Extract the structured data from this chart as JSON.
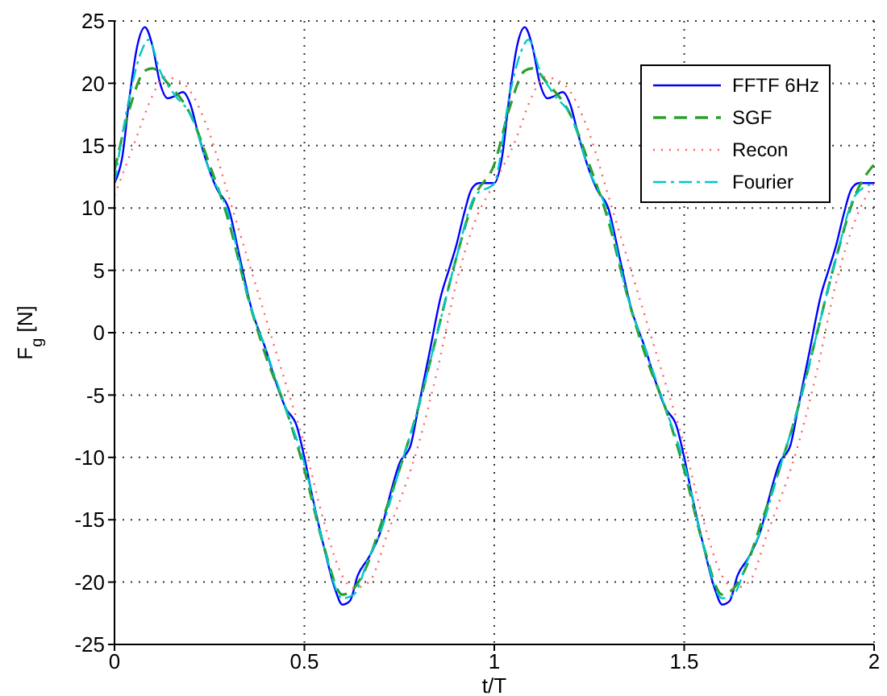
{
  "chart_data": {
    "type": "line",
    "xlabel": "t/T",
    "ylabel": "F$_{g}$ [N]",
    "xlim": [
      0,
      2
    ],
    "ylim": [
      -25,
      25
    ],
    "xticks": [
      0,
      0.5,
      1,
      1.5,
      2
    ],
    "yticks": [
      -25,
      -20,
      -15,
      -10,
      -5,
      0,
      5,
      10,
      15,
      20,
      25
    ],
    "grid": true,
    "legend": "top right",
    "marker": "none",
    "series": [
      {
        "name": "FFTF 6Hz",
        "color": "#0000ff",
        "line_style": "solid",
        "x": [
          0,
          0.02,
          0.04,
          0.06,
          0.08,
          0.1,
          0.12,
          0.14,
          0.16,
          0.18,
          0.2,
          0.22,
          0.25,
          0.27,
          0.3,
          0.33,
          0.36,
          0.4,
          0.42,
          0.45,
          0.48,
          0.5,
          0.52,
          0.55,
          0.58,
          0.6,
          0.62,
          0.64,
          0.67,
          0.7,
          0.73,
          0.75,
          0.78,
          0.8,
          0.83,
          0.86,
          0.88,
          0.9,
          0.92,
          0.94,
          0.96,
          1,
          1.02,
          1.04,
          1.06,
          1.08,
          1.1,
          1.12,
          1.14,
          1.16,
          1.18,
          1.2,
          1.22,
          1.25,
          1.27,
          1.3,
          1.33,
          1.36,
          1.4,
          1.42,
          1.45,
          1.48,
          1.5,
          1.52,
          1.55,
          1.58,
          1.6,
          1.62,
          1.64,
          1.67,
          1.7,
          1.73,
          1.75,
          1.78,
          1.8,
          1.83,
          1.86,
          1.88,
          1.9,
          1.92,
          1.94,
          1.96,
          2
        ],
        "values": [
          12,
          14,
          19,
          23,
          24.5,
          23,
          20,
          18.8,
          19,
          19.3,
          18.3,
          16,
          13,
          11.5,
          10,
          6,
          2,
          -1.5,
          -3.5,
          -6,
          -7.5,
          -10,
          -13,
          -17,
          -20.5,
          -21.8,
          -21.5,
          -19.5,
          -18,
          -16,
          -12.5,
          -10.5,
          -9,
          -6,
          -1.5,
          3,
          5,
          7,
          9.5,
          11.5,
          12,
          12,
          14,
          19,
          23,
          24.5,
          23,
          20,
          18.8,
          19,
          19.3,
          18.3,
          16,
          13,
          11.5,
          10,
          6,
          2,
          -1.5,
          -3.5,
          -6,
          -7.5,
          -10,
          -13,
          -17,
          -20.5,
          -21.8,
          -21.5,
          -19.5,
          -18,
          -16,
          -12.5,
          -10.5,
          -9,
          -6,
          -1.5,
          3,
          5,
          7,
          9.5,
          11.5,
          12,
          12
        ]
      },
      {
        "name": "SGF",
        "color": "#2e9e2e",
        "line_style": "dashed",
        "x": [
          0,
          0.04,
          0.08,
          0.1,
          0.14,
          0.2,
          0.25,
          0.3,
          0.35,
          0.4,
          0.45,
          0.5,
          0.55,
          0.6,
          0.63,
          0.66,
          0.7,
          0.75,
          0.8,
          0.85,
          0.9,
          0.95,
          1,
          1.04,
          1.08,
          1.1,
          1.14,
          1.2,
          1.25,
          1.3,
          1.35,
          1.4,
          1.45,
          1.5,
          1.55,
          1.6,
          1.63,
          1.66,
          1.7,
          1.75,
          1.8,
          1.85,
          1.9,
          1.95,
          2
        ],
        "values": [
          13,
          18,
          21,
          21.2,
          20,
          17.5,
          13.5,
          9,
          3,
          -2,
          -6,
          -11,
          -17,
          -21,
          -20.5,
          -19,
          -15.5,
          -11,
          -6,
          0,
          6,
          11,
          13.5,
          18,
          21,
          21.2,
          20,
          17.5,
          13.5,
          9,
          3,
          -2,
          -6,
          -11,
          -17,
          -21,
          -20.5,
          -19,
          -15.5,
          -11,
          -6,
          0,
          6,
          11,
          13.5
        ]
      },
      {
        "name": "Recon",
        "color": "#ff6060",
        "line_style": "dotted",
        "x": [
          0,
          0.05,
          0.1,
          0.13,
          0.18,
          0.25,
          0.3,
          0.4,
          0.45,
          0.5,
          0.55,
          0.6,
          0.63,
          0.67,
          0.72,
          0.8,
          0.85,
          0.9,
          0.95,
          1,
          1.05,
          1.1,
          1.13,
          1.18,
          1.25,
          1.3,
          1.4,
          1.45,
          1.5,
          1.55,
          1.6,
          1.63,
          1.67,
          1.72,
          1.8,
          1.85,
          1.9,
          1.95,
          2
        ],
        "values": [
          11,
          15,
          19,
          20.5,
          20,
          16,
          11,
          1,
          -4,
          -9,
          -15,
          -19.5,
          -20.5,
          -20,
          -16,
          -9,
          -3,
          4,
          9,
          12,
          15,
          19,
          20.5,
          20,
          16,
          11,
          1,
          -4,
          -9,
          -15,
          -19.5,
          -20.5,
          -20,
          -16,
          -9,
          -3,
          4,
          9,
          12
        ]
      },
      {
        "name": "Fourier",
        "color": "#00c8c8",
        "line_style": "dashdot",
        "x": [
          0,
          0.04,
          0.07,
          0.09,
          0.12,
          0.16,
          0.2,
          0.25,
          0.3,
          0.35,
          0.4,
          0.45,
          0.5,
          0.55,
          0.6,
          0.63,
          0.67,
          0.7,
          0.75,
          0.8,
          0.85,
          0.9,
          0.95,
          1,
          1.04,
          1.07,
          1.09,
          1.12,
          1.16,
          1.2,
          1.25,
          1.3,
          1.35,
          1.4,
          1.45,
          1.5,
          1.55,
          1.6,
          1.63,
          1.67,
          1.7,
          1.75,
          1.8,
          1.85,
          1.9,
          1.95,
          2
        ],
        "values": [
          12,
          19,
          22.5,
          23.5,
          21,
          19,
          17.5,
          13,
          9.5,
          3,
          -1.5,
          -6,
          -10.5,
          -17,
          -21.3,
          -21,
          -18,
          -16,
          -11,
          -6,
          0,
          6,
          11,
          12,
          19,
          22.5,
          23.5,
          21,
          19,
          17.5,
          13,
          9.5,
          3,
          -1.5,
          -6,
          -10.5,
          -17,
          -21.3,
          -21,
          -18,
          -16,
          -11,
          -6,
          0,
          6,
          11,
          12
        ]
      }
    ]
  }
}
